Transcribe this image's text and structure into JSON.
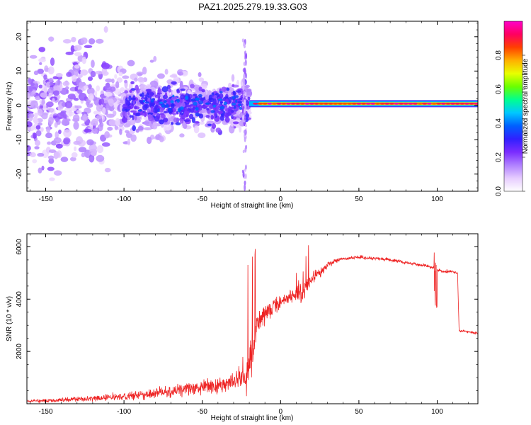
{
  "figure_title": "PAZ1.2025.279.19.33.G03",
  "chart_data": [
    {
      "type": "heatmap",
      "title": "",
      "xlabel": "Height of straight line (km)",
      "ylabel": "Frequency (Hz)",
      "xlim": [
        -162,
        126
      ],
      "ylim": [
        -25,
        24.5
      ],
      "xticks": [
        -150,
        -100,
        -50,
        0,
        50,
        100
      ],
      "yticks": [
        -20,
        -10,
        0,
        10,
        20
      ],
      "colorbar": {
        "label": "Normalized spectral amplitude",
        "range": [
          0.0,
          1.0
        ],
        "ticks": [
          0.0,
          0.2,
          0.4,
          0.6,
          0.8
        ],
        "tick_labels": [
          "0.0",
          "0.2",
          "0.4",
          "0.6",
          "0.8"
        ],
        "colormap": [
          "#ffffff",
          "#e6ccff",
          "#b080ff",
          "#7a2cff",
          "#3020ff",
          "#0060ff",
          "#00c8ff",
          "#00ff90",
          "#6aff00",
          "#e8ff00",
          "#ffb000",
          "#ff4000",
          "#ff0060",
          "#ff00c8"
        ]
      },
      "regions": [
        {
          "description": "scattered low-amplitude noise",
          "x_range": [
            -162,
            -20
          ],
          "freq_range": [
            -25,
            24.5
          ],
          "amplitude": 0.1
        },
        {
          "description": "moderate blobs near 0 Hz",
          "x_range": [
            -100,
            -20
          ],
          "freq_range": [
            -10,
            10
          ],
          "amplitude": 0.25
        },
        {
          "description": "strong carrier line",
          "x_range": [
            -20,
            126
          ],
          "freq_center": 0.5,
          "amplitude": 0.9
        }
      ]
    },
    {
      "type": "line",
      "title": "",
      "xlabel": "Height of straight line (km)",
      "ylabel": "SNR (10 * v/v)",
      "xlim": [
        -162,
        126
      ],
      "ylim": [
        0,
        6500
      ],
      "xticks": [
        -150,
        -100,
        -50,
        0,
        50,
        100
      ],
      "yticks": [
        2000,
        4000,
        6000
      ],
      "color": "#ee2222",
      "x": [
        -162,
        -150,
        -140,
        -120,
        -100,
        -80,
        -60,
        -40,
        -30,
        -25,
        -22,
        -20,
        -18,
        -15,
        -10,
        -5,
        0,
        5,
        10,
        15,
        20,
        25,
        30,
        35,
        40,
        50,
        60,
        70,
        80,
        90,
        95,
        99,
        100,
        105,
        110,
        113,
        114,
        120,
        126
      ],
      "values": [
        100,
        120,
        150,
        200,
        280,
        400,
        550,
        700,
        900,
        1100,
        1000,
        1500,
        2000,
        3000,
        3400,
        3700,
        3800,
        4100,
        4200,
        4300,
        4800,
        5000,
        5300,
        5450,
        5550,
        5600,
        5550,
        5500,
        5400,
        5300,
        5250,
        5150,
        5100,
        5050,
        5050,
        5000,
        2800,
        2750,
        2700
      ],
      "noise_amplitude": [
        100,
        120,
        150,
        200,
        250,
        350,
        450,
        600,
        700,
        800,
        1500,
        1500,
        1200,
        900,
        700,
        600,
        500,
        500,
        600,
        800,
        400,
        300,
        200,
        150,
        120,
        120,
        120,
        120,
        120,
        120,
        120,
        120,
        120,
        120,
        120,
        120,
        80,
        80,
        80
      ]
    }
  ]
}
